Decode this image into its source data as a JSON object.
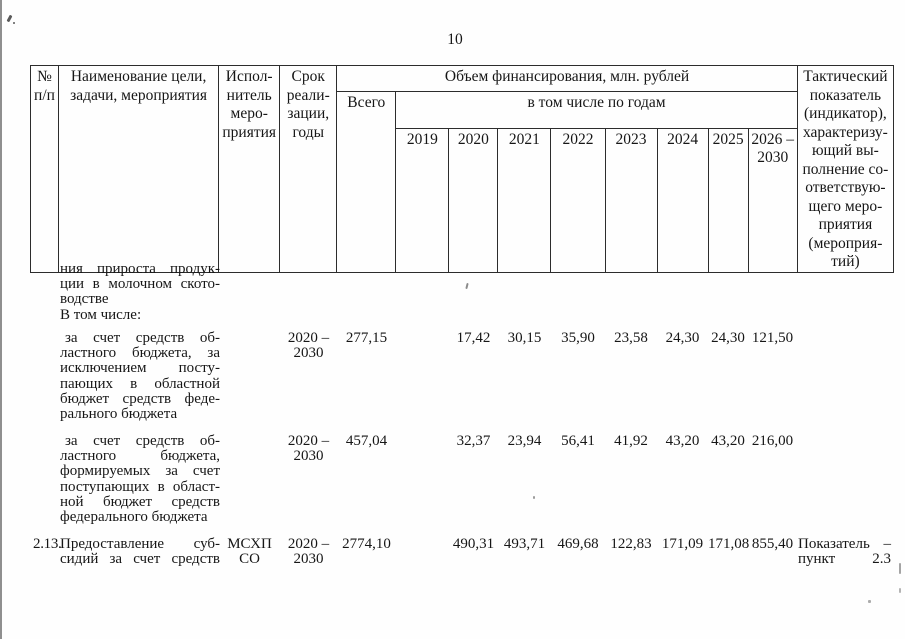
{
  "page": {
    "number": "10"
  },
  "table": {
    "header": {
      "num_lines": [
        "№",
        "п/п"
      ],
      "name_lines": [
        "Наименование цели,",
        "задачи, мероприятия"
      ],
      "executor_lines": [
        "Испол-",
        "нитель",
        "меро-",
        "приятия"
      ],
      "term_lines": [
        "Срок",
        "реали-",
        "зации,",
        "годы"
      ],
      "financing_title": "Объем финансирования, млн. рублей",
      "total_label": "Всего",
      "by_years_label": "в том числе по годам",
      "year_labels": [
        "2019",
        "2020",
        "2021",
        "2022",
        "2023",
        "2024",
        "2025"
      ],
      "year_last_lines": [
        "2026 –",
        "2030"
      ],
      "indicator_lines": [
        "Тактический",
        "показатель",
        "(индикатор),",
        "характеризу-",
        "ющий вы-",
        "полнение со-",
        "ответствую-",
        "щего меро-",
        "приятия",
        "(мероприя-",
        "тий)"
      ]
    },
    "body": {
      "continuation_lines": [
        "ния прироста продук-",
        "ции в молочном ското-",
        "водстве"
      ],
      "including_label": "В том числе:",
      "rows": [
        {
          "name_lines": [
            "за счет средств об-",
            "ластного бюджета, за",
            "исключением посту-",
            "пающих в областной",
            "бюджет средств феде-",
            "рального бюджета"
          ],
          "term_lines": [
            "2020 –",
            "2030"
          ],
          "total": "277,15",
          "values": {
            "2020": "17,42",
            "2021": "30,15",
            "2022": "35,90",
            "2023": "23,58",
            "2024": "24,30",
            "2025": "24,30",
            "2026_2030": "121,50"
          }
        },
        {
          "name_lines": [
            "за счет средств об-",
            "ластного бюджета,",
            "формируемых за счет",
            "поступающих в област-",
            "ной бюджет средств",
            "федерального бюджета"
          ],
          "term_lines": [
            "2020 –",
            "2030"
          ],
          "total": "457,04",
          "values": {
            "2020": "32,37",
            "2021": "23,94",
            "2022": "56,41",
            "2023": "41,92",
            "2024": "43,20",
            "2025": "43,20",
            "2026_2030": "216,00"
          }
        },
        {
          "num": "2.13.",
          "name_lines": [
            "Предоставление суб-",
            "сидий за счет средств"
          ],
          "executor_lines": [
            "МСХП",
            "СО"
          ],
          "term_lines": [
            "2020 –",
            "2030"
          ],
          "total": "2774,10",
          "values": {
            "2020": "490,31",
            "2021": "493,71",
            "2022": "469,68",
            "2023": "122,83",
            "2024": "171,09",
            "2025": "171,08",
            "2026_2030": "855,40"
          },
          "indicator_lines": [
            "Показатель –",
            "пункт 2.3"
          ]
        }
      ]
    }
  }
}
